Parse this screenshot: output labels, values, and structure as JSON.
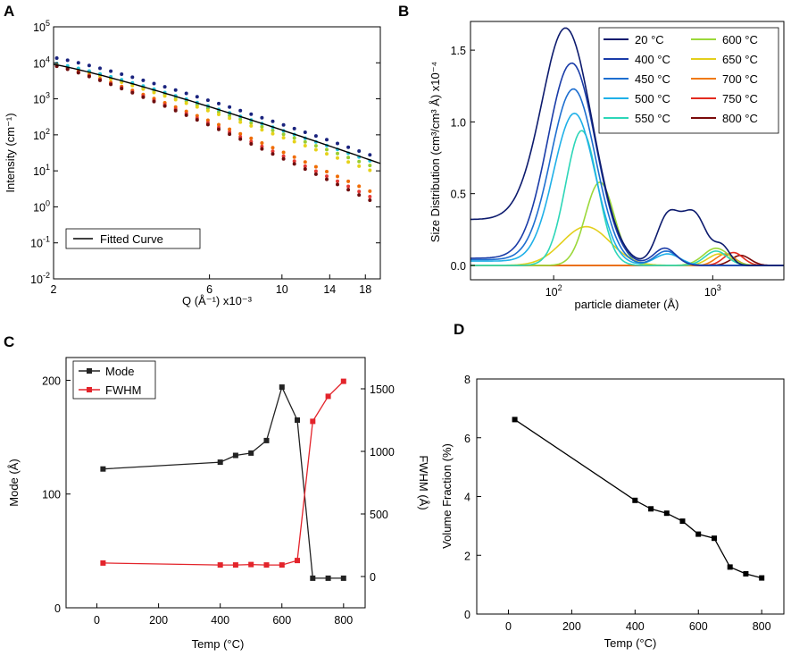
{
  "panel_letters": [
    "A",
    "B",
    "C",
    "D"
  ],
  "chart_data": [
    {
      "panel": "A",
      "type": "scatter",
      "xscale": "log",
      "yscale": "log",
      "xlabel": "Q (Å⁻¹) x10⁻³",
      "ylabel": "Intensity (cm⁻¹)",
      "xlim": [
        2,
        20
      ],
      "ylim": [
        0.01,
        100000
      ],
      "xticks": [
        2,
        6,
        10,
        14,
        18
      ],
      "yticks": [
        {
          "value": 0.01,
          "mant": "10",
          "exp": "-2"
        },
        {
          "value": 0.1,
          "mant": "10",
          "exp": "-1"
        },
        {
          "value": 1,
          "mant": "10",
          "exp": "0"
        },
        {
          "value": 10,
          "mant": "10",
          "exp": "1"
        },
        {
          "value": 100,
          "mant": "10",
          "exp": "2"
        },
        {
          "value": 1000,
          "mant": "10",
          "exp": "3"
        },
        {
          "value": 10000,
          "mant": "10",
          "exp": "4"
        },
        {
          "value": 100000,
          "mant": "10",
          "exp": "5"
        }
      ],
      "legend": "Fitted Curve",
      "series": [
        {
          "name": "20 °C",
          "color": "#1a237e",
          "I0": 14000,
          "Iend": 22
        },
        {
          "name": "600 °C",
          "color": "#9acd32",
          "I0": 9500,
          "Iend": 11
        },
        {
          "name": "650 °C",
          "color": "#e6d21a",
          "I0": 9200,
          "Iend": 8
        },
        {
          "name": "500 °C",
          "color": "#26c6da",
          "I0": 9800,
          "Iend": 15
        },
        {
          "name": "700 °C",
          "color": "#ef6c00",
          "I0": 8800,
          "Iend": 2.0
        },
        {
          "name": "750 °C",
          "color": "#e53935",
          "I0": 8600,
          "Iend": 1.4
        },
        {
          "name": "800 °C",
          "color": "#6d0e0e",
          "I0": 8400,
          "Iend": 1.1
        }
      ],
      "fit": {
        "I0": 9000,
        "Iend": 16
      }
    },
    {
      "panel": "B",
      "type": "line",
      "xscale": "log",
      "xlabel": "particle diameter (Å)",
      "ylabel": "Size Distribution (cm³/cm³ Å) x10⁻⁴",
      "xlim": [
        30,
        2800
      ],
      "ylim": [
        -0.1,
        1.7
      ],
      "xticks": [
        {
          "value": 100,
          "mant": "10",
          "exp": "2"
        },
        {
          "value": 1000,
          "mant": "10",
          "exp": "3"
        }
      ],
      "yticks": [
        "0.0",
        "0.5",
        "1.0",
        "1.5"
      ],
      "legend": [
        {
          "label": "20 °C",
          "color": "#0d1b6e"
        },
        {
          "label": "400 °C",
          "color": "#1a3ca8"
        },
        {
          "label": "450 °C",
          "color": "#1e6fd0"
        },
        {
          "label": "500 °C",
          "color": "#1fb0e8"
        },
        {
          "label": "550 °C",
          "color": "#2dd6b8"
        },
        {
          "label": "600 °C",
          "color": "#9bd83a"
        },
        {
          "label": "650 °C",
          "color": "#e3cf1c"
        },
        {
          "label": "700 °C",
          "color": "#f07a10"
        },
        {
          "label": "750 °C",
          "color": "#e32b1f"
        },
        {
          "label": "800 °C",
          "color": "#7a0a0a"
        }
      ],
      "curves": [
        {
          "color": "#0d1b6e",
          "base": 0.32,
          "peak": 1.51,
          "center": 125,
          "sigma": 0.16,
          "extra": [
            {
              "a": 0.33,
              "c": 520,
              "s": 0.07
            },
            {
              "a": 0.36,
              "c": 760,
              "s": 0.08
            },
            {
              "a": 0.12,
              "c": 1150,
              "s": 0.05
            }
          ]
        },
        {
          "color": "#1a3ca8",
          "base": 0.05,
          "peak": 1.41,
          "center": 130,
          "sigma": 0.15,
          "extra": [
            {
              "a": 0.12,
              "c": 500,
              "s": 0.07
            }
          ]
        },
        {
          "color": "#1e6fd0",
          "base": 0.04,
          "peak": 1.23,
          "center": 133,
          "sigma": 0.14,
          "extra": [
            {
              "a": 0.1,
              "c": 510,
              "s": 0.07
            }
          ]
        },
        {
          "color": "#1fb0e8",
          "base": 0.03,
          "peak": 1.06,
          "center": 135,
          "sigma": 0.13,
          "extra": [
            {
              "a": 0.08,
              "c": 520,
              "s": 0.08
            }
          ]
        },
        {
          "color": "#2dd6b8",
          "base": 0.0,
          "peak": 0.94,
          "center": 150,
          "sigma": 0.1,
          "extra": [
            {
              "a": 0.1,
              "c": 1050,
              "s": 0.07
            }
          ]
        },
        {
          "color": "#9bd83a",
          "base": 0.0,
          "peak": 0.58,
          "center": 195,
          "sigma": 0.09,
          "extra": [
            {
              "a": 0.12,
              "c": 1050,
              "s": 0.08
            }
          ]
        },
        {
          "color": "#e3cf1c",
          "base": 0.0,
          "peak": 0.27,
          "center": 160,
          "sigma": 0.15,
          "extra": [
            {
              "a": 0.08,
              "c": 1100,
              "s": 0.07
            }
          ]
        },
        {
          "color": "#f07a10",
          "base": 0.0,
          "peak": 0.0,
          "center": 150,
          "sigma": 0.1,
          "extra": [
            {
              "a": 0.08,
              "c": 1200,
              "s": 0.06
            }
          ]
        },
        {
          "color": "#e32b1f",
          "base": 0.0,
          "peak": 0.0,
          "center": 150,
          "sigma": 0.1,
          "extra": [
            {
              "a": 0.09,
              "c": 1350,
              "s": 0.06
            }
          ]
        },
        {
          "color": "#7a0a0a",
          "base": 0.0,
          "peak": 0.0,
          "center": 150,
          "sigma": 0.1,
          "extra": [
            {
              "a": 0.07,
              "c": 1500,
              "s": 0.06
            }
          ]
        }
      ]
    },
    {
      "panel": "C",
      "type": "line",
      "xlabel": "Temp (°C)",
      "ylabel": "Mode (Å)",
      "ylabel_right": "FWHM (Å)",
      "xlim": [
        -100,
        870
      ],
      "ylim": [
        0,
        220
      ],
      "ylim_right": [
        -250,
        1750
      ],
      "xticks": [
        "0",
        "200",
        "400",
        "600",
        "800"
      ],
      "yticks": [
        "0",
        "100",
        "200"
      ],
      "yticks_right": [
        "0",
        "500",
        "1000",
        "1500"
      ],
      "series": [
        {
          "name": "Mode",
          "color": "#222222",
          "axis": "left",
          "x": [
            20,
            400,
            450,
            500,
            550,
            600,
            650,
            700,
            750,
            800
          ],
          "y": [
            122,
            128,
            134,
            136,
            147,
            194,
            165,
            26,
            26,
            26
          ]
        },
        {
          "name": "FWHM",
          "color": "#e3242b",
          "axis": "right",
          "x": [
            20,
            400,
            450,
            500,
            550,
            600,
            650,
            700,
            750,
            800
          ],
          "y": [
            108,
            92,
            92,
            96,
            92,
            92,
            128,
            1240,
            1440,
            1560
          ]
        }
      ]
    },
    {
      "panel": "D",
      "type": "line",
      "xlabel": "Temp (°C)",
      "ylabel": "Volume Fraction (%)",
      "xlim": [
        -100,
        870
      ],
      "ylim": [
        0,
        8
      ],
      "xticks": [
        "0",
        "200",
        "400",
        "600",
        "800"
      ],
      "yticks": [
        "0",
        "2",
        "4",
        "6",
        "8"
      ],
      "series": [
        {
          "name": "Volume Fraction",
          "color": "#000000",
          "x": [
            20,
            400,
            450,
            500,
            550,
            600,
            650,
            700,
            750,
            800
          ],
          "y": [
            6.62,
            3.87,
            3.58,
            3.43,
            3.16,
            2.72,
            2.58,
            1.6,
            1.37,
            1.23
          ]
        }
      ]
    }
  ]
}
